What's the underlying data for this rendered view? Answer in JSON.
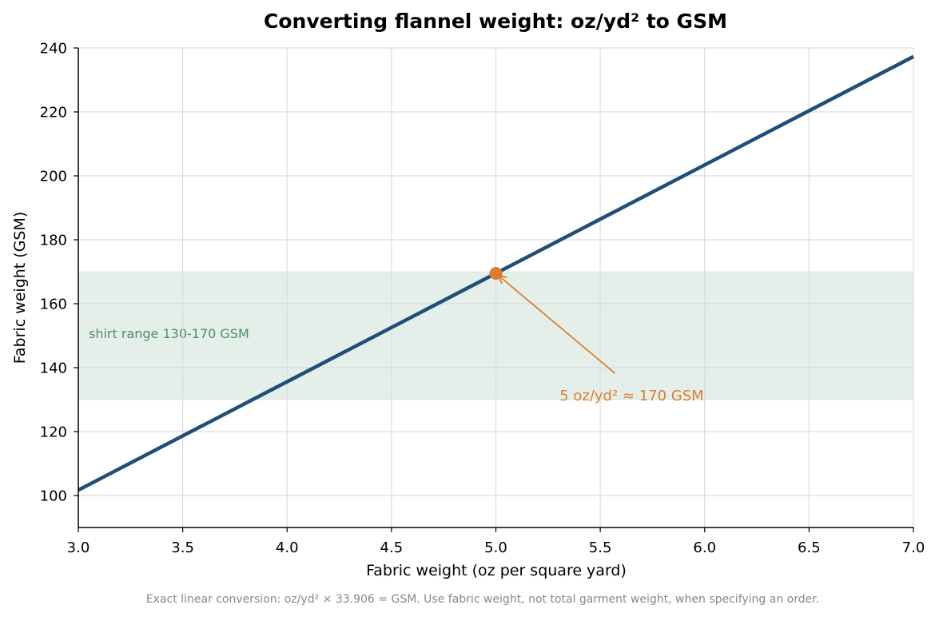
{
  "chart_data": {
    "type": "line",
    "title": "Converting flannel weight: oz/yd² to GSM",
    "xlabel": "Fabric weight (oz per square yard)",
    "ylabel": "Fabric weight (GSM)",
    "xlim": [
      3.0,
      7.0
    ],
    "ylim": [
      90,
      240
    ],
    "xticks": [
      "3.0",
      "3.5",
      "4.0",
      "4.5",
      "5.0",
      "5.5",
      "6.0",
      "6.5",
      "7.0"
    ],
    "yticks": [
      "100",
      "120",
      "140",
      "160",
      "180",
      "200",
      "220",
      "240"
    ],
    "grid": true,
    "series": [
      {
        "x": [
          3.0,
          7.0
        ],
        "values": [
          101.7,
          237.3
        ],
        "color": "#1f4e79"
      }
    ],
    "band": {
      "y_range": [
        130,
        170
      ],
      "label": "shirt range 130-170 GSM",
      "color": "#4a8f6a"
    },
    "highlight_point": {
      "x": 5.0,
      "y": 169.5,
      "color": "#e07b2e"
    },
    "annotation": {
      "text": "5 oz/yd² ≈ 170 GSM",
      "text_x": 5.55,
      "text_y": 135,
      "color": "#e07b2e"
    },
    "footnote": "Exact linear conversion: oz/yd² × 33.906 = GSM. Use fabric weight, not total garment weight, when specifying an order."
  }
}
